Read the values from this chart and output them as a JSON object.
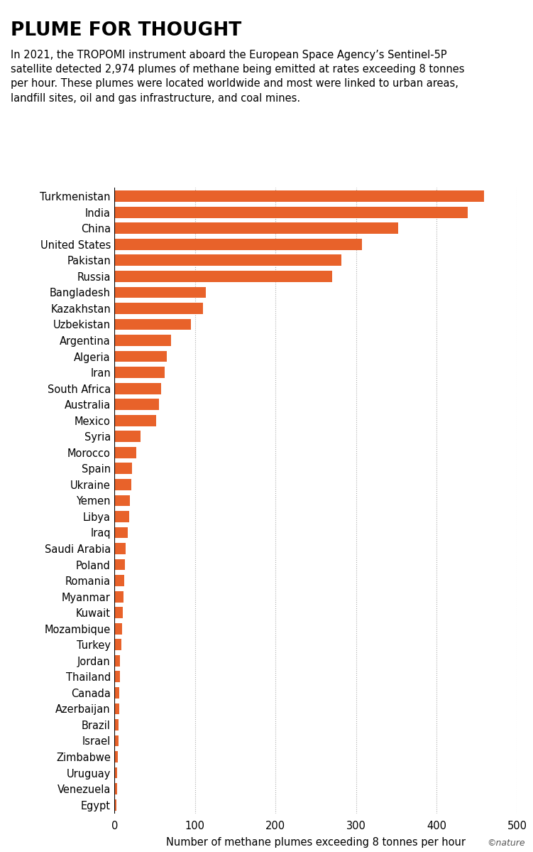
{
  "title": "PLUME FOR THOUGHT",
  "subtitle": "In 2021, the TROPOMI instrument aboard the European Space Agency’s Sentinel-5P\nsatellite detected 2,974 plumes of methane being emitted at rates exceeding 8 tonnes\nper hour. These plumes were located worldwide and most were linked to urban areas,\nlandfill sites, oil and gas infrastructure, and coal mines.",
  "xlabel": "Number of methane plumes exceeding 8 tonnes per hour",
  "bar_color": "#E8622A",
  "background_color": "#ffffff",
  "xlim": [
    0,
    500
  ],
  "xticks": [
    0,
    100,
    200,
    300,
    400,
    500
  ],
  "countries": [
    "Turkmenistan",
    "India",
    "China",
    "United States",
    "Pakistan",
    "Russia",
    "Bangladesh",
    "Kazakhstan",
    "Uzbekistan",
    "Argentina",
    "Algeria",
    "Iran",
    "South Africa",
    "Australia",
    "Mexico",
    "Syria",
    "Morocco",
    "Spain",
    "Ukraine",
    "Yemen",
    "Libya",
    "Iraq",
    "Saudi Arabia",
    "Poland",
    "Romania",
    "Myanmar",
    "Kuwait",
    "Mozambique",
    "Turkey",
    "Jordan",
    "Thailand",
    "Canada",
    "Azerbaijan",
    "Brazil",
    "Israel",
    "Zimbabwe",
    "Uruguay",
    "Venezuela",
    "Egypt"
  ],
  "values": [
    459,
    439,
    352,
    307,
    282,
    270,
    113,
    110,
    95,
    70,
    65,
    62,
    58,
    55,
    52,
    32,
    27,
    22,
    21,
    19,
    18,
    16,
    14,
    13,
    12,
    11,
    10,
    9,
    8,
    7,
    7,
    6,
    6,
    5,
    5,
    4,
    3,
    3,
    2
  ],
  "watermark": "©nature",
  "title_fontsize": 19,
  "subtitle_fontsize": 10.5,
  "xlabel_fontsize": 10.5,
  "tick_fontsize": 10.5,
  "bar_height": 0.7
}
